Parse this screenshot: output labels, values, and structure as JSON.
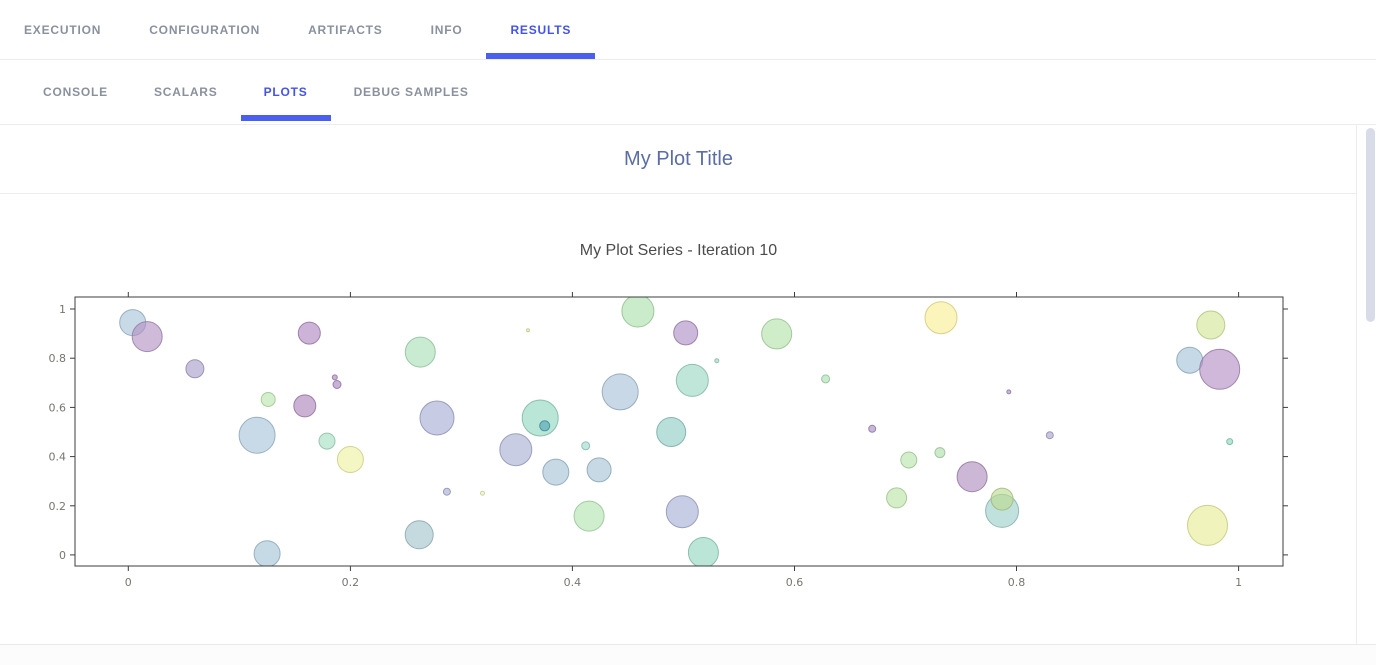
{
  "main_tabs": [
    {
      "label": "EXECUTION",
      "active": false
    },
    {
      "label": "CONFIGURATION",
      "active": false
    },
    {
      "label": "ARTIFACTS",
      "active": false
    },
    {
      "label": "INFO",
      "active": false
    },
    {
      "label": "RESULTS",
      "active": true
    }
  ],
  "sub_tabs": [
    {
      "label": "CONSOLE",
      "active": false
    },
    {
      "label": "SCALARS",
      "active": false
    },
    {
      "label": "PLOTS",
      "active": true
    },
    {
      "label": "DEBUG SAMPLES",
      "active": false
    }
  ],
  "plot": {
    "title": "My Plot Title"
  },
  "colors": {
    "accent_text": "#4353e9",
    "accent_underline": "#4a5ff0",
    "inactive_tab": "#8a919e",
    "plot_title": "#5b6da4",
    "axis_frame": "#3c3c3c",
    "tick_label": "#77776f"
  },
  "chart_data": {
    "type": "scatter",
    "title": "My Plot Series - Iteration 10",
    "xlabel": "",
    "ylabel": "",
    "xlim": [
      -0.048,
      1.04
    ],
    "ylim": [
      -0.045,
      1.049
    ],
    "xticks": [
      0,
      0.2,
      0.4,
      0.6,
      0.8,
      1
    ],
    "yticks": [
      0,
      0.2,
      0.4,
      0.6,
      0.8,
      1
    ],
    "grid": false,
    "legend": null,
    "points": [
      {
        "x": 0.004,
        "y": 0.945,
        "r": 13,
        "color": "#a6c3d9"
      },
      {
        "x": 0.017,
        "y": 0.888,
        "r": 15,
        "color": "#b18fc3"
      },
      {
        "x": 0.06,
        "y": 0.757,
        "r": 9,
        "color": "#a89cc9"
      },
      {
        "x": 0.163,
        "y": 0.902,
        "r": 11,
        "color": "#ad85bf"
      },
      {
        "x": 0.186,
        "y": 0.722,
        "r": 2.5,
        "color": "#a783bb"
      },
      {
        "x": 0.188,
        "y": 0.693,
        "r": 4,
        "color": "#a783bb"
      },
      {
        "x": 0.126,
        "y": 0.632,
        "r": 7,
        "color": "#b9e5ab"
      },
      {
        "x": 0.159,
        "y": 0.606,
        "r": 11,
        "color": "#ab82ba"
      },
      {
        "x": 0.116,
        "y": 0.487,
        "r": 18,
        "color": "#a6c3d9"
      },
      {
        "x": 0.179,
        "y": 0.463,
        "r": 8,
        "color": "#a3dfc0"
      },
      {
        "x": 0.2,
        "y": 0.388,
        "r": 13,
        "color": "#eef09e"
      },
      {
        "x": 0.125,
        "y": 0.005,
        "r": 13,
        "color": "#a3c3d6"
      },
      {
        "x": 0.263,
        "y": 0.825,
        "r": 15,
        "color": "#a7dfb5"
      },
      {
        "x": 0.278,
        "y": 0.557,
        "r": 17,
        "color": "#a7abd3"
      },
      {
        "x": 0.349,
        "y": 0.428,
        "r": 16,
        "color": "#a7aed3"
      },
      {
        "x": 0.371,
        "y": 0.557,
        "r": 18,
        "color": "#8fd6bf"
      },
      {
        "x": 0.375,
        "y": 0.525,
        "r": 5,
        "color": "#4fa3b5"
      },
      {
        "x": 0.385,
        "y": 0.337,
        "r": 13,
        "color": "#a3c2d5"
      },
      {
        "x": 0.424,
        "y": 0.346,
        "r": 12,
        "color": "#a3c2d5"
      },
      {
        "x": 0.412,
        "y": 0.444,
        "r": 4,
        "color": "#9cd9cc"
      },
      {
        "x": 0.415,
        "y": 0.158,
        "r": 15,
        "color": "#b2e3b0"
      },
      {
        "x": 0.262,
        "y": 0.082,
        "r": 14,
        "color": "#a2c3cc"
      },
      {
        "x": 0.287,
        "y": 0.257,
        "r": 3.5,
        "color": "#a7abd3"
      },
      {
        "x": 0.319,
        "y": 0.251,
        "r": 2,
        "color": "#eaf0b5"
      },
      {
        "x": 0.443,
        "y": 0.663,
        "r": 18,
        "color": "#a6c0d8"
      },
      {
        "x": 0.459,
        "y": 0.992,
        "r": 16,
        "color": "#abe0ab"
      },
      {
        "x": 0.36,
        "y": 0.914,
        "r": 1.5,
        "color": "#e2eb9e"
      },
      {
        "x": 0.502,
        "y": 0.903,
        "r": 12,
        "color": "#ab8cc3"
      },
      {
        "x": 0.584,
        "y": 0.899,
        "r": 15,
        "color": "#b2e2a7"
      },
      {
        "x": 0.53,
        "y": 0.79,
        "r": 2,
        "color": "#9cd9c2"
      },
      {
        "x": 0.508,
        "y": 0.71,
        "r": 16,
        "color": "#98d7c2"
      },
      {
        "x": 0.489,
        "y": 0.5,
        "r": 14.5,
        "color": "#8cccc4"
      },
      {
        "x": 0.732,
        "y": 0.965,
        "r": 16,
        "color": "#f9ee92"
      },
      {
        "x": 0.628,
        "y": 0.716,
        "r": 4,
        "color": "#a8dfb2"
      },
      {
        "x": 0.67,
        "y": 0.513,
        "r": 3.5,
        "color": "#a58bc0"
      },
      {
        "x": 0.703,
        "y": 0.386,
        "r": 8,
        "color": "#b6e3aa"
      },
      {
        "x": 0.731,
        "y": 0.416,
        "r": 5,
        "color": "#aedfaa"
      },
      {
        "x": 0.76,
        "y": 0.318,
        "r": 15,
        "color": "#ad8bbd"
      },
      {
        "x": 0.692,
        "y": 0.232,
        "r": 10,
        "color": "#bae4a6"
      },
      {
        "x": 0.499,
        "y": 0.176,
        "r": 16,
        "color": "#a7aed6"
      },
      {
        "x": 0.518,
        "y": 0.01,
        "r": 15,
        "color": "#92d6bf"
      },
      {
        "x": 0.793,
        "y": 0.663,
        "r": 2,
        "color": "#a58bc0"
      },
      {
        "x": 0.83,
        "y": 0.487,
        "r": 3.5,
        "color": "#a8a2ce"
      },
      {
        "x": 0.787,
        "y": 0.179,
        "r": 16.5,
        "color": "#9bcfca"
      },
      {
        "x": 0.787,
        "y": 0.227,
        "r": 11,
        "color": "#bcda8e"
      },
      {
        "x": 0.975,
        "y": 0.935,
        "r": 14,
        "color": "#d2e794"
      },
      {
        "x": 0.956,
        "y": 0.792,
        "r": 13,
        "color": "#a1c1d9"
      },
      {
        "x": 0.983,
        "y": 0.755,
        "r": 20,
        "color": "#b18cc1"
      },
      {
        "x": 0.992,
        "y": 0.461,
        "r": 3,
        "color": "#8bd5bf"
      },
      {
        "x": 0.972,
        "y": 0.12,
        "r": 20,
        "color": "#e6ec92"
      }
    ]
  }
}
